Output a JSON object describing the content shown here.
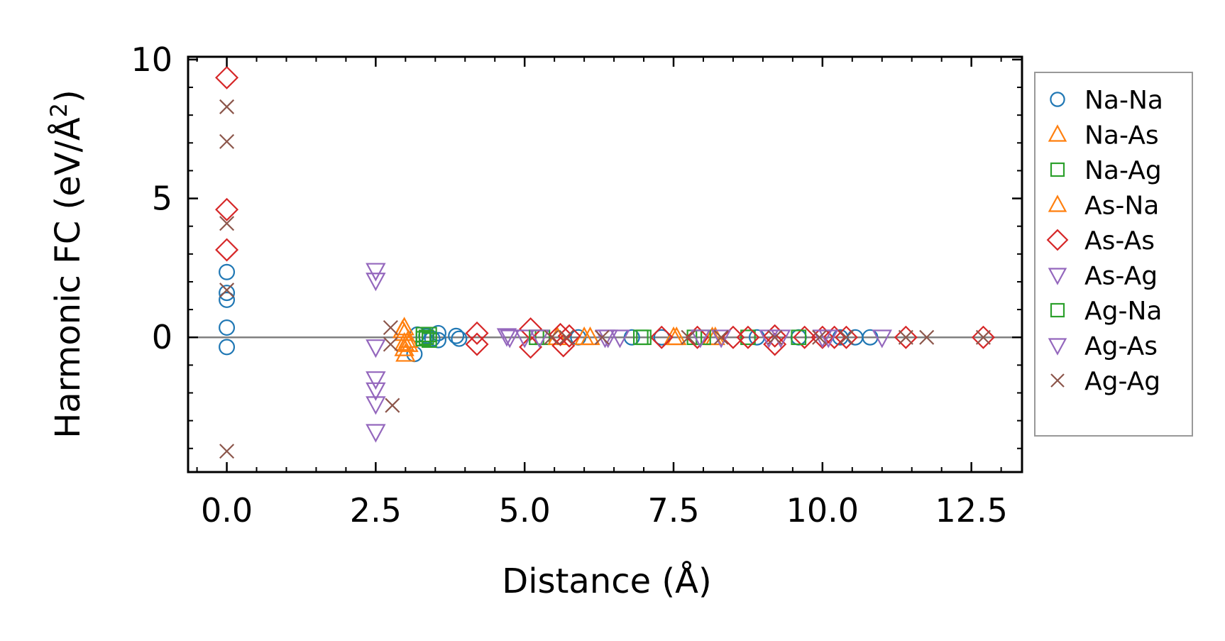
{
  "chart_data": {
    "type": "scatter",
    "title": "",
    "xlabel": "Distance (Å)",
    "ylabel": "Harmonic FC (eV/Å²)",
    "ylabel_main": "Harmonic FC (eV/Å",
    "ylabel_sup": "2",
    "ylabel_close": ")",
    "xlim": [
      -0.65,
      13.35
    ],
    "ylim": [
      -4.85,
      10.1
    ],
    "x_ticks": [
      0.0,
      2.5,
      5.0,
      7.5,
      10.0,
      12.5
    ],
    "x_tick_labels": [
      "0.0",
      "2.5",
      "5.0",
      "7.5",
      "10.0",
      "12.5"
    ],
    "y_ticks": [
      0,
      5,
      10
    ],
    "y_tick_labels": [
      "0",
      "5",
      "10"
    ],
    "grid": false,
    "zero_line": true,
    "legend_position": "outside-right",
    "series": [
      {
        "name": "Na-Na",
        "marker": "circle",
        "color": "#1f77b4",
        "points": [
          [
            0,
            2.35
          ],
          [
            0,
            1.6
          ],
          [
            0,
            1.35
          ],
          [
            0,
            0.35
          ],
          [
            0,
            -0.35
          ],
          [
            3.15,
            -0.6
          ],
          [
            3.2,
            0.1
          ],
          [
            3.35,
            0.05
          ],
          [
            3.45,
            -0.05
          ],
          [
            3.55,
            0.15
          ],
          [
            3.55,
            -0.1
          ],
          [
            3.85,
            0.05
          ],
          [
            3.9,
            -0.05
          ],
          [
            5.9,
            0.0
          ],
          [
            6.8,
            0.0
          ],
          [
            7.3,
            0.0
          ],
          [
            8.9,
            0.0
          ],
          [
            9.6,
            0.0
          ],
          [
            10.3,
            0.0
          ],
          [
            10.55,
            0.0
          ],
          [
            10.8,
            0.0
          ]
        ]
      },
      {
        "name": "Na-As",
        "marker": "triangle-up",
        "color": "#ff7f0e",
        "points": [
          [
            2.98,
            0.35
          ],
          [
            2.98,
            0.15
          ],
          [
            2.98,
            -0.2
          ],
          [
            2.98,
            -0.4
          ],
          [
            3.0,
            -0.6
          ],
          [
            3.05,
            -0.25
          ],
          [
            6.0,
            0.0
          ],
          [
            7.55,
            0.0
          ],
          [
            8.15,
            0.0
          ]
        ]
      },
      {
        "name": "Na-Ag",
        "marker": "square",
        "color": "#2ca02c",
        "points": [
          [
            3.3,
            0.1
          ],
          [
            3.35,
            0.0
          ],
          [
            3.4,
            -0.1
          ],
          [
            3.4,
            0.1
          ],
          [
            5.3,
            0.0
          ],
          [
            6.95,
            0.0
          ],
          [
            7.85,
            0.0
          ],
          [
            8.75,
            0.0
          ]
        ]
      },
      {
        "name": "As-Na",
        "marker": "triangle-up",
        "color": "#ff7f0e",
        "points": [
          [
            2.95,
            0.25
          ],
          [
            3.05,
            -0.1
          ],
          [
            5.55,
            0.0
          ],
          [
            6.1,
            0.0
          ],
          [
            7.5,
            0.0
          ],
          [
            8.2,
            0.0
          ]
        ]
      },
      {
        "name": "As-As",
        "marker": "diamond",
        "color": "#d62728",
        "points": [
          [
            0,
            9.35
          ],
          [
            0,
            4.6
          ],
          [
            0,
            3.15
          ],
          [
            4.2,
            0.15
          ],
          [
            4.2,
            -0.25
          ],
          [
            5.1,
            0.3
          ],
          [
            5.1,
            -0.35
          ],
          [
            5.6,
            0.1
          ],
          [
            5.65,
            -0.3
          ],
          [
            5.75,
            0.05
          ],
          [
            7.3,
            0.0
          ],
          [
            7.9,
            0.0
          ],
          [
            8.5,
            0.0
          ],
          [
            8.75,
            0.0
          ],
          [
            9.2,
            -0.25
          ],
          [
            9.2,
            0.05
          ],
          [
            9.7,
            0.0
          ],
          [
            10.0,
            0.0
          ],
          [
            10.2,
            0.0
          ],
          [
            10.4,
            0.0
          ],
          [
            11.4,
            0.0
          ],
          [
            12.7,
            0.0
          ]
        ]
      },
      {
        "name": "As-Ag",
        "marker": "triangle-down",
        "color": "#9467bd",
        "points": [
          [
            2.5,
            2.4
          ],
          [
            2.5,
            2.05
          ],
          [
            2.5,
            -0.35
          ],
          [
            2.5,
            -1.5
          ],
          [
            2.5,
            -1.9
          ],
          [
            2.5,
            -2.4
          ],
          [
            2.5,
            -3.4
          ],
          [
            4.75,
            0.0
          ],
          [
            5.0,
            0.0
          ],
          [
            6.4,
            0.0
          ],
          [
            8.3,
            0.0
          ],
          [
            9.1,
            0.0
          ],
          [
            10.1,
            0.0
          ],
          [
            11.0,
            0.0
          ]
        ]
      },
      {
        "name": "Ag-Na",
        "marker": "square",
        "color": "#2ca02c",
        "points": [
          [
            3.3,
            -0.05
          ],
          [
            5.2,
            0.0
          ],
          [
            7.0,
            0.0
          ],
          [
            8.0,
            0.0
          ],
          [
            9.6,
            0.0
          ]
        ]
      },
      {
        "name": "Ag-As",
        "marker": "triangle-down",
        "color": "#9467bd",
        "points": [
          [
            4.7,
            0.05
          ],
          [
            5.25,
            0.0
          ],
          [
            6.35,
            0.0
          ],
          [
            6.6,
            0.0
          ],
          [
            7.95,
            0.0
          ],
          [
            9.3,
            0.0
          ],
          [
            10.0,
            0.0
          ]
        ]
      },
      {
        "name": "Ag-Ag",
        "marker": "x",
        "color": "#8c564b",
        "points": [
          [
            0,
            8.3
          ],
          [
            0,
            7.05
          ],
          [
            0,
            4.1
          ],
          [
            0,
            1.7
          ],
          [
            0,
            -4.1
          ],
          [
            2.75,
            0.35
          ],
          [
            2.75,
            -0.25
          ],
          [
            2.78,
            -2.45
          ],
          [
            5.45,
            0.0
          ],
          [
            5.7,
            0.0
          ],
          [
            6.3,
            0.0
          ],
          [
            7.75,
            0.0
          ],
          [
            8.3,
            0.0
          ],
          [
            9.2,
            0.0
          ],
          [
            9.95,
            0.0
          ],
          [
            10.4,
            0.0
          ],
          [
            11.4,
            0.0
          ],
          [
            11.75,
            0.0
          ],
          [
            12.7,
            0.0
          ]
        ]
      }
    ]
  }
}
